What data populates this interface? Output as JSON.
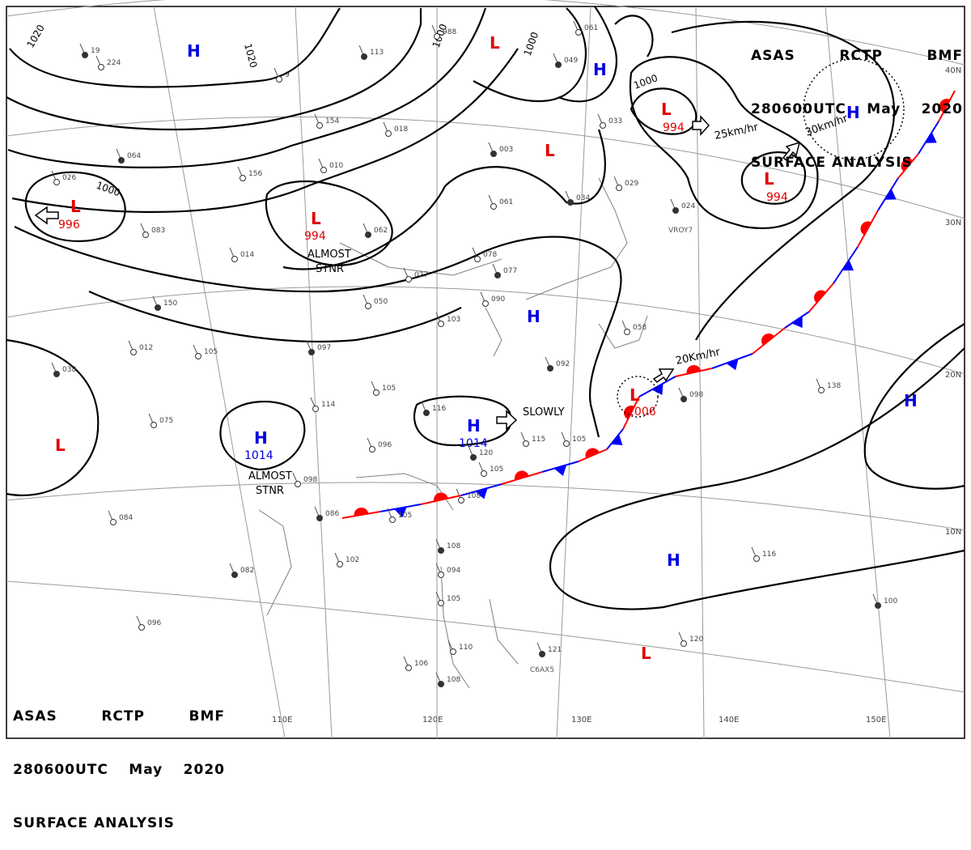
{
  "header_top": {
    "line1": [
      "ASAS",
      "RCTP",
      "BMF"
    ],
    "line2": [
      "280600UTC",
      "May",
      "2020"
    ],
    "line3": "SURFACE ANALYSIS"
  },
  "header_bottom": {
    "line1": [
      "ASAS",
      "RCTP",
      "BMF"
    ],
    "line2": [
      "280600UTC",
      "May",
      "2020"
    ],
    "line3": "SURFACE ANALYSIS"
  },
  "colors": {
    "low": "#e00000",
    "high": "#0000e0",
    "isobar": "#000000",
    "graticule": "#9a9a9a",
    "coast": "#808080",
    "warm_front": "#ff0000",
    "cold_front": "#0000ff"
  },
  "latitude_labels": [
    "40N",
    "30N",
    "20N",
    "10N"
  ],
  "longitude_labels": [
    "110E",
    "120E",
    "130E",
    "140E",
    "150E"
  ],
  "isobar_labels": [
    "1020",
    "1020",
    "1000",
    "1000",
    "1000",
    "1000"
  ],
  "pressure_centers": [
    {
      "type": "H",
      "value": ""
    },
    {
      "type": "H",
      "value": ""
    },
    {
      "type": "H",
      "value": ""
    },
    {
      "type": "H",
      "value": ""
    },
    {
      "type": "H",
      "value": "1014"
    },
    {
      "type": "H",
      "value": "1014"
    },
    {
      "type": "H",
      "value": ""
    },
    {
      "type": "H",
      "value": ""
    },
    {
      "type": "L",
      "value": ""
    },
    {
      "type": "L",
      "value": ""
    },
    {
      "type": "L",
      "value": "994"
    },
    {
      "type": "L",
      "value": "994"
    },
    {
      "type": "L",
      "value": "996"
    },
    {
      "type": "L",
      "value": "994"
    },
    {
      "type": "L",
      "value": "1006"
    },
    {
      "type": "L",
      "value": ""
    },
    {
      "type": "L",
      "value": ""
    }
  ],
  "motion_labels": [
    "25km/hr",
    "30km/hr",
    "20Km/hr",
    "SLOWLY"
  ],
  "stationary_labels": [
    {
      "line1": "ALMOST",
      "line2": "STNR"
    },
    {
      "line1": "ALMOST",
      "line2": "STNR"
    }
  ],
  "station_plots": [
    "19",
    "224",
    "9",
    "113",
    "988",
    "061",
    "049",
    "154",
    "018",
    "003",
    "033",
    "010",
    "064",
    "156",
    "026",
    "034",
    "029",
    "083",
    "062",
    "061",
    "078",
    "150",
    "014",
    "027",
    "077",
    "090",
    "058",
    "024",
    "012",
    "105",
    "097",
    "050",
    "103",
    "092",
    "114",
    "105",
    "116",
    "115",
    "105",
    "098",
    "138",
    "075",
    "038",
    "096",
    "098",
    "120",
    "105",
    "108",
    "086",
    "105",
    "084",
    "082",
    "102",
    "116",
    "108",
    "094",
    "105",
    "100",
    "096",
    "110",
    "121",
    "120",
    "106",
    "108"
  ],
  "station_ids": [
    "VROY7",
    "C6AX5"
  ]
}
